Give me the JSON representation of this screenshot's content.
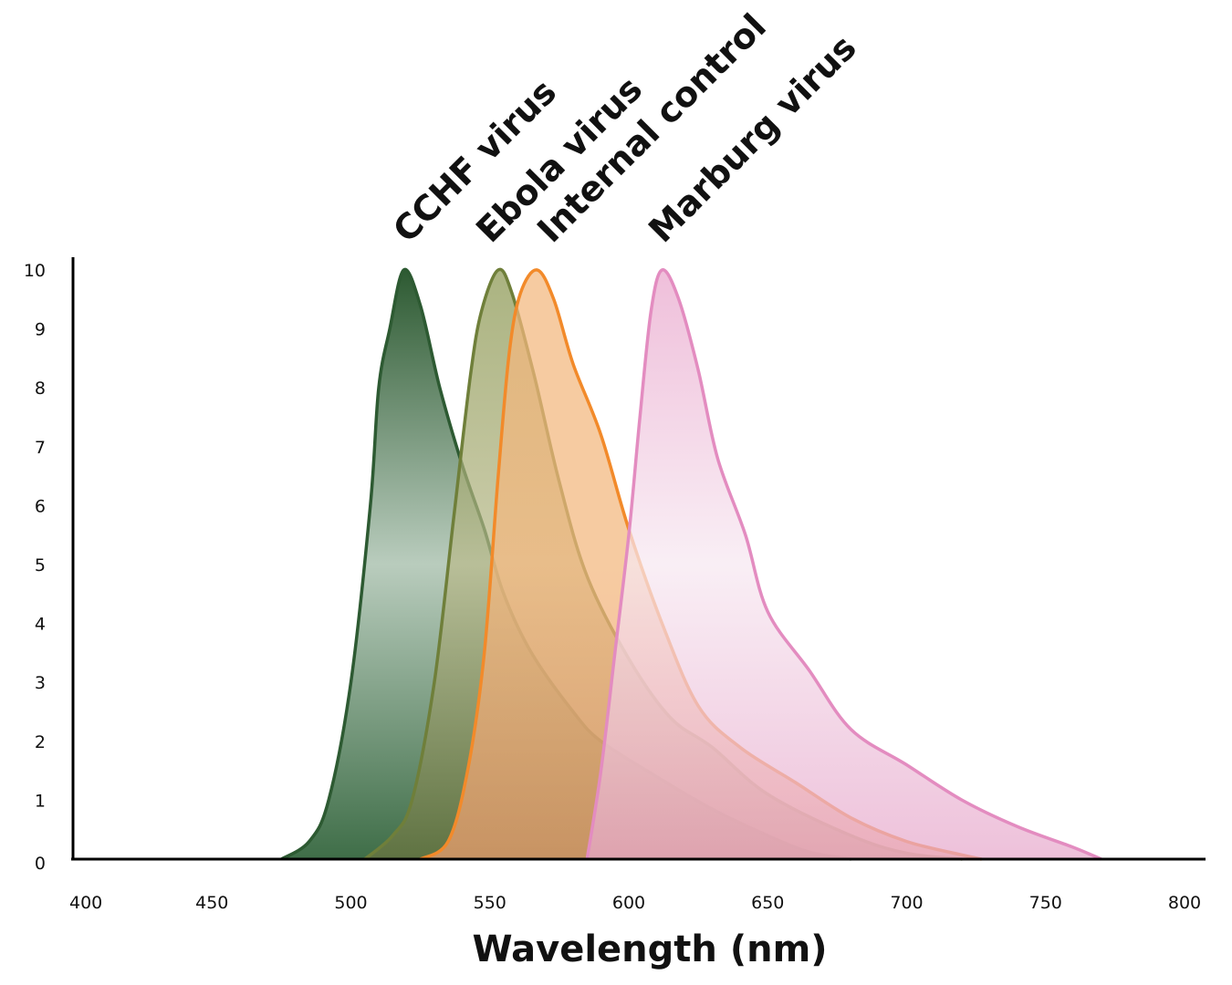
{
  "chart_data": {
    "type": "area",
    "title": "",
    "xlabel": "Wavelength (nm)",
    "ylabel": "",
    "xlim": [
      400,
      800
    ],
    "ylim": [
      0,
      10
    ],
    "x_ticks": [
      400,
      450,
      500,
      550,
      600,
      650,
      700,
      750,
      800
    ],
    "y_ticks": [
      0,
      1,
      2,
      3,
      4,
      5,
      6,
      7,
      8,
      9,
      10
    ],
    "series": [
      {
        "name": "CCHF virus",
        "color": "#2d5a32",
        "fill_top": "#2d5a32",
        "fill_mid": "#b9ccbd",
        "fill_bottom": "#3f6e48",
        "points": [
          [
            475,
            0
          ],
          [
            485,
            0.3
          ],
          [
            492,
            1
          ],
          [
            500,
            3
          ],
          [
            507,
            6
          ],
          [
            510,
            8
          ],
          [
            514,
            9
          ],
          [
            519,
            10
          ],
          [
            525,
            9.4
          ],
          [
            532,
            8
          ],
          [
            540,
            6.7
          ],
          [
            548,
            5.6
          ],
          [
            555,
            4.5
          ],
          [
            565,
            3.5
          ],
          [
            580,
            2.5
          ],
          [
            590,
            2.0
          ],
          [
            610,
            1.4
          ],
          [
            630,
            0.85
          ],
          [
            650,
            0.4
          ],
          [
            665,
            0.12
          ],
          [
            680,
            0
          ]
        ]
      },
      {
        "name": "Ebola virus",
        "color": "#6f7f3a",
        "fill_top": "#8a9650",
        "fill_mid": "#b8b98a",
        "fill_bottom": "#6c7540",
        "points": [
          [
            505,
            0
          ],
          [
            515,
            0.4
          ],
          [
            522,
            1
          ],
          [
            530,
            3
          ],
          [
            537,
            5.8
          ],
          [
            543,
            8.2
          ],
          [
            547,
            9.3
          ],
          [
            553,
            10
          ],
          [
            558,
            9.6
          ],
          [
            566,
            8.2
          ],
          [
            575,
            6.4
          ],
          [
            585,
            4.8
          ],
          [
            600,
            3.4
          ],
          [
            615,
            2.4
          ],
          [
            630,
            1.9
          ],
          [
            650,
            1.1
          ],
          [
            680,
            0.4
          ],
          [
            700,
            0.1
          ],
          [
            720,
            0
          ]
        ]
      },
      {
        "name": "Internal control",
        "color": "#f28a2a",
        "fill_top": "#f3b77d",
        "fill_mid": "#f3b77d",
        "fill_bottom": "#f0a070",
        "points": [
          [
            525,
            0
          ],
          [
            535,
            0.3
          ],
          [
            542,
            1.5
          ],
          [
            548,
            3.5
          ],
          [
            553,
            6.5
          ],
          [
            557,
            8.6
          ],
          [
            561,
            9.6
          ],
          [
            567,
            10
          ],
          [
            573,
            9.5
          ],
          [
            580,
            8.4
          ],
          [
            590,
            7.2
          ],
          [
            600,
            5.6
          ],
          [
            612,
            4.0
          ],
          [
            625,
            2.6
          ],
          [
            640,
            1.9
          ],
          [
            660,
            1.3
          ],
          [
            680,
            0.7
          ],
          [
            700,
            0.3
          ],
          [
            720,
            0.07
          ],
          [
            727,
            0
          ]
        ]
      },
      {
        "name": "Marburg virus",
        "color": "#e38cc0",
        "fill_top": "#e9a6cc",
        "fill_mid": "#f7e8f1",
        "fill_bottom": "#e7a9cc",
        "points": [
          [
            585,
            0
          ],
          [
            590,
            1.5
          ],
          [
            595,
            3.5
          ],
          [
            600,
            5.5
          ],
          [
            604,
            7.5
          ],
          [
            608,
            9.3
          ],
          [
            612,
            10
          ],
          [
            618,
            9.5
          ],
          [
            625,
            8.3
          ],
          [
            632,
            6.8
          ],
          [
            642,
            5.5
          ],
          [
            650,
            4.2
          ],
          [
            665,
            3.2
          ],
          [
            680,
            2.2
          ],
          [
            700,
            1.6
          ],
          [
            720,
            1.0
          ],
          [
            740,
            0.55
          ],
          [
            760,
            0.2
          ],
          [
            770,
            0
          ]
        ]
      }
    ]
  }
}
